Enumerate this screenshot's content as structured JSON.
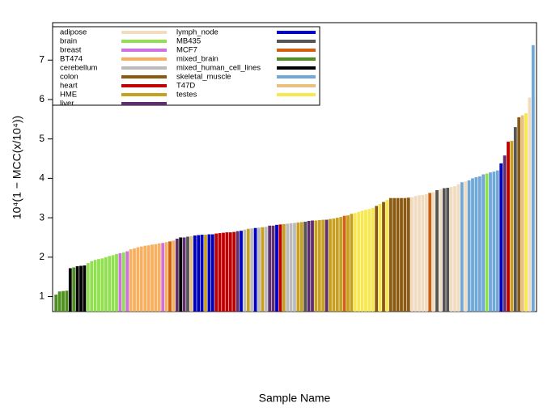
{
  "chart_data": {
    "type": "bar",
    "ylabel": "10⁴(1 − MCC(x/10⁴))",
    "xlabel": "Sample Name",
    "ylim": [
      0.62,
      7.95
    ],
    "yticks": [
      1,
      2,
      3,
      4,
      5,
      6,
      7
    ],
    "legend": [
      {
        "name": "adipose",
        "color": "#F1DCC2"
      },
      {
        "name": "brain",
        "color": "#90E050"
      },
      {
        "name": "breast",
        "color": "#D070E0"
      },
      {
        "name": "BT474",
        "color": "#F8B060"
      },
      {
        "name": "cerebellum",
        "color": "#BBBBBB"
      },
      {
        "name": "colon",
        "color": "#8B5A10"
      },
      {
        "name": "heart",
        "color": "#C00000"
      },
      {
        "name": "HME",
        "color": "#C8A020"
      },
      {
        "name": "liver",
        "color": "#5E2E6E"
      },
      {
        "name": "lymph_node",
        "color": "#0000C0"
      },
      {
        "name": "MB435",
        "color": "#555555"
      },
      {
        "name": "MCF7",
        "color": "#D06010"
      },
      {
        "name": "mixed_brain",
        "color": "#4E8F1E"
      },
      {
        "name": "mixed_human_cell_lines",
        "color": "#000000"
      },
      {
        "name": "skeletal_muscle",
        "color": "#70A8D8"
      },
      {
        "name": "T47D",
        "color": "#E8C080"
      },
      {
        "name": "testes",
        "color": "#F8E850"
      }
    ],
    "values": [
      1.05,
      1.13,
      1.14,
      1.15,
      1.72,
      1.74,
      1.77,
      1.78,
      1.79,
      1.85,
      1.9,
      1.93,
      1.95,
      1.97,
      2.0,
      2.03,
      2.05,
      2.08,
      2.1,
      2.12,
      2.15,
      2.2,
      2.22,
      2.25,
      2.27,
      2.29,
      2.3,
      2.32,
      2.33,
      2.35,
      2.36,
      2.38,
      2.4,
      2.42,
      2.47,
      2.5,
      2.5,
      2.52,
      2.53,
      2.55,
      2.56,
      2.57,
      2.57,
      2.58,
      2.58,
      2.6,
      2.61,
      2.62,
      2.63,
      2.63,
      2.64,
      2.66,
      2.67,
      2.7,
      2.72,
      2.73,
      2.74,
      2.75,
      2.76,
      2.77,
      2.8,
      2.8,
      2.82,
      2.83,
      2.84,
      2.85,
      2.86,
      2.87,
      2.88,
      2.89,
      2.9,
      2.92,
      2.93,
      2.93,
      2.94,
      2.95,
      2.95,
      2.97,
      2.98,
      3.0,
      3.02,
      3.05,
      3.06,
      3.1,
      3.12,
      3.15,
      3.18,
      3.2,
      3.22,
      3.25,
      3.3,
      3.35,
      3.4,
      3.45,
      3.5,
      3.5,
      3.5,
      3.5,
      3.5,
      3.51,
      3.52,
      3.55,
      3.57,
      3.58,
      3.6,
      3.63,
      3.65,
      3.7,
      3.72,
      3.75,
      3.76,
      3.78,
      3.8,
      3.85,
      3.9,
      3.92,
      3.95,
      4.0,
      4.03,
      4.05,
      4.1,
      4.12,
      4.15,
      4.17,
      4.2,
      4.38,
      4.58,
      4.93,
      4.95,
      5.3,
      5.55,
      5.6,
      5.65,
      6.05,
      7.38
    ],
    "colors": [
      "#4E8F1E",
      "#4E8F1E",
      "#4E8F1E",
      "#4E8F1E",
      "#000000",
      "#4E8F1E",
      "#000000",
      "#000000",
      "#000000",
      "#90E050",
      "#90E050",
      "#90E050",
      "#90E050",
      "#90E050",
      "#90E050",
      "#90E050",
      "#90E050",
      "#90E050",
      "#D070E0",
      "#90E050",
      "#D070E0",
      "#F8B060",
      "#F8B060",
      "#F8B060",
      "#F8B060",
      "#F8B060",
      "#F8B060",
      "#F8B060",
      "#F8B060",
      "#F8B060",
      "#D070E0",
      "#F8B060",
      "#D06010",
      "#F8B060",
      "#5E2E6E",
      "#000000",
      "#5E2E6E",
      "#555555",
      "#E8C080",
      "#0000C0",
      "#0000C0",
      "#0000C0",
      "#C8A020",
      "#0000C0",
      "#0000C0",
      "#C00000",
      "#C00000",
      "#C00000",
      "#C00000",
      "#C00000",
      "#C00000",
      "#5E2E6E",
      "#0000C0",
      "#BBBBBB",
      "#C8A020",
      "#BBBBBB",
      "#0000C0",
      "#BBBBBB",
      "#C8A020",
      "#BBBBBB",
      "#5E2E6E",
      "#5E2E6E",
      "#0000C0",
      "#C00000",
      "#C8A020",
      "#BBBBBB",
      "#BBBBBB",
      "#BBBBBB",
      "#C8A020",
      "#C8A020",
      "#555555",
      "#5E2E6E",
      "#5E2E6E",
      "#C8A020",
      "#C8A020",
      "#C8A020",
      "#5E2E6E",
      "#C8A020",
      "#C8A020",
      "#C8A020",
      "#C8A020",
      "#D06010",
      "#C8A020",
      "#C8A020",
      "#F8E850",
      "#F8E850",
      "#F8E850",
      "#F8E850",
      "#F8E850",
      "#F8E850",
      "#8B5A10",
      "#F8E850",
      "#8B5A10",
      "#F8E850",
      "#8B5A10",
      "#8B5A10",
      "#8B5A10",
      "#8B5A10",
      "#8B5A10",
      "#8B5A10",
      "#F1DCC2",
      "#F1DCC2",
      "#F1DCC2",
      "#F1DCC2",
      "#F1DCC2",
      "#D06010",
      "#F1DCC2",
      "#555555",
      "#F1DCC2",
      "#555555",
      "#555555",
      "#F1DCC2",
      "#F1DCC2",
      "#F1DCC2",
      "#70A8D8",
      "#F1DCC2",
      "#70A8D8",
      "#70A8D8",
      "#70A8D8",
      "#70A8D8",
      "#70A8D8",
      "#90E050",
      "#70A8D8",
      "#70A8D8",
      "#70A8D8",
      "#0000C0",
      "#5E2E6E",
      "#C00000",
      "#C8A020",
      "#555555",
      "#8B5A10",
      "#E8C080",
      "#F8E850",
      "#F1DCC2",
      "#70A8D8"
    ]
  }
}
